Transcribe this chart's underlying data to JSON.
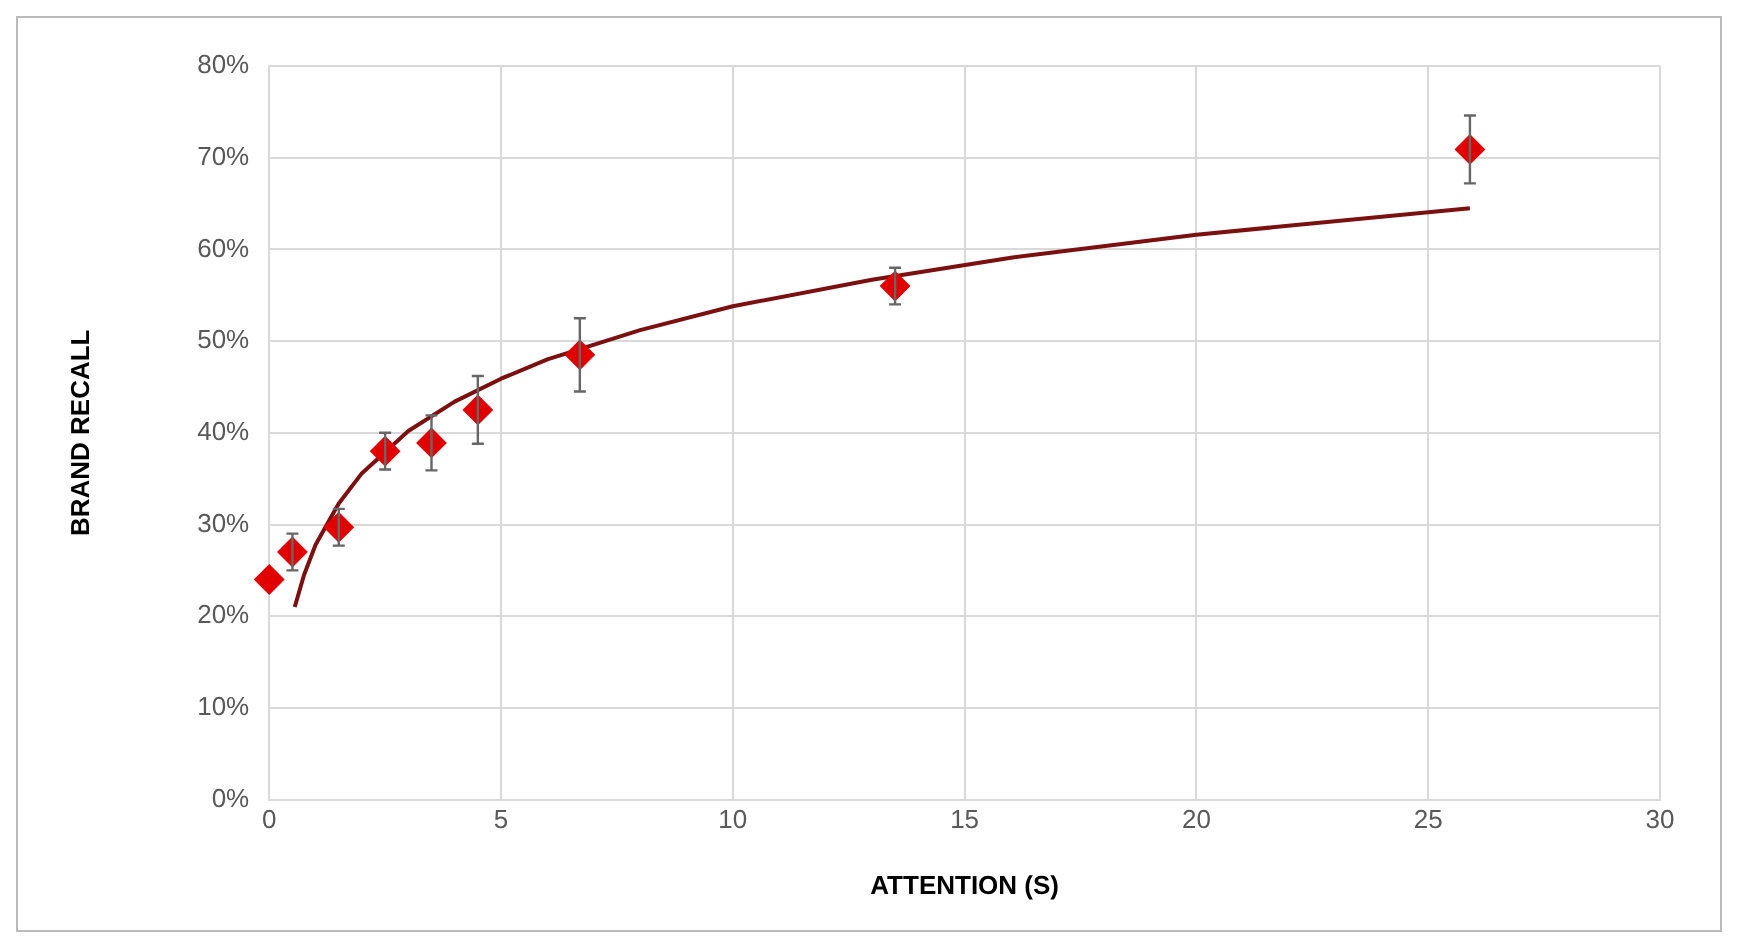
{
  "chart_data": {
    "type": "scatter",
    "xlabel": "ATTENTION (S)",
    "ylabel": "BRAND RECALL",
    "xlim": [
      0,
      30
    ],
    "xticks": [
      0,
      5,
      10,
      15,
      20,
      25,
      30
    ],
    "ylim": [
      0,
      80
    ],
    "yticks": [
      {
        "value": 0,
        "label": "0%"
      },
      {
        "value": 10,
        "label": "10%"
      },
      {
        "value": 20,
        "label": "20%"
      },
      {
        "value": 30,
        "label": "30%"
      },
      {
        "value": 40,
        "label": "40%"
      },
      {
        "value": 50,
        "label": "50%"
      },
      {
        "value": 60,
        "label": "60%"
      },
      {
        "value": 70,
        "label": "70%"
      },
      {
        "value": 80,
        "label": "80%"
      }
    ],
    "grid": true,
    "legend": false,
    "marker": "diamond",
    "series": [
      {
        "color": "#e00000",
        "x": [
          0,
          0.5,
          1.5,
          2.5,
          3.5,
          4.5,
          6.7,
          13.5,
          25.9
        ],
        "values": [
          24,
          27,
          29.7,
          38,
          38.9,
          42.5,
          48.5,
          56,
          70.9
        ],
        "errors": [
          null,
          2,
          2,
          2,
          3,
          3.7,
          4,
          2,
          3.7
        ]
      },
      {
        "type": "line",
        "color": "#7b1010",
        "marker": "none",
        "x": [
          0.55,
          0.75,
          1,
          1.5,
          2,
          3,
          4,
          5,
          6,
          8,
          10,
          13,
          16,
          20,
          25.9
        ],
        "values": [
          21,
          24.5,
          27.8,
          32.3,
          35.6,
          40.2,
          43.4,
          45.9,
          48,
          51.2,
          53.8,
          56.7,
          59.1,
          61.6,
          64.5
        ]
      }
    ]
  }
}
